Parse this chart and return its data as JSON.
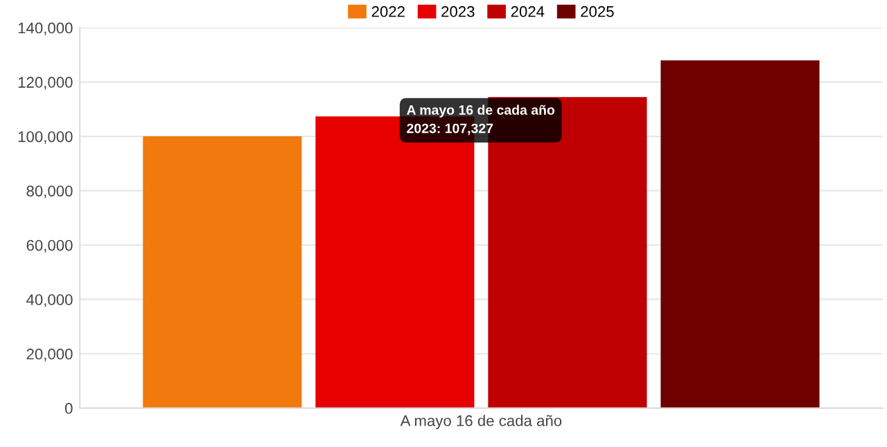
{
  "chart_data": {
    "type": "bar",
    "categories": [
      "A mayo 16 de cada año"
    ],
    "series": [
      {
        "name": "2022",
        "color": "#f2790d",
        "values": [
          100000
        ]
      },
      {
        "name": "2023",
        "color": "#e60000",
        "values": [
          107327
        ]
      },
      {
        "name": "2024",
        "color": "#bf0000",
        "values": [
          114500
        ]
      },
      {
        "name": "2025",
        "color": "#6e0000",
        "values": [
          128000
        ]
      }
    ],
    "ylim": [
      0,
      140000
    ],
    "yticks": [
      {
        "value": 0,
        "label": "0"
      },
      {
        "value": 20000,
        "label": "20,000"
      },
      {
        "value": 40000,
        "label": "40,000"
      },
      {
        "value": 60000,
        "label": "60,000"
      },
      {
        "value": 80000,
        "label": "80,000"
      },
      {
        "value": 100000,
        "label": "100,000"
      },
      {
        "value": 120000,
        "label": "120,000"
      },
      {
        "value": 140000,
        "label": "140,000"
      }
    ],
    "grid": "y",
    "legend": "top",
    "annotations": [
      {
        "text": "A mayo 16 de cada año\n2023: 107,327",
        "x": "A mayo 16 de cada año",
        "y": 107327
      }
    ]
  }
}
